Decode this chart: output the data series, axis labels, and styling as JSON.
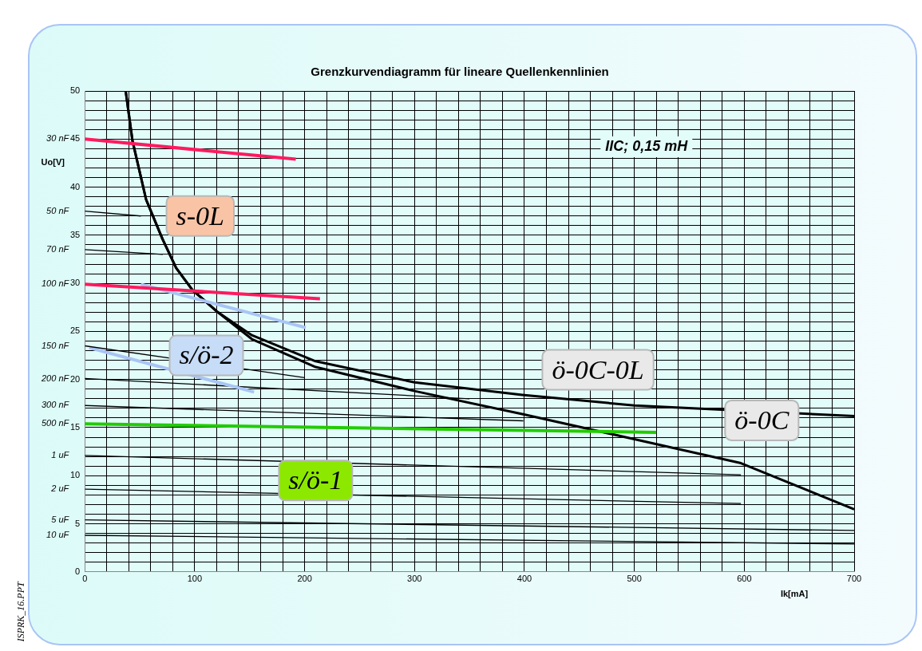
{
  "chart_data": {
    "type": "line",
    "title": "Grenzkurvendiagramm für lineare Quellenkennlinien",
    "xlabel": "Ik[mA]",
    "ylabel": "Uo[V]",
    "annotations": [
      "IIC; 0,15 mH",
      "ISPRK_16.PPT",
      "s-0L",
      "s/ö-2",
      "s/ö-1",
      "ö-0C-0L",
      "ö-0C"
    ],
    "xlim": [
      0,
      700
    ],
    "ylim": [
      0,
      50
    ],
    "xticks": [
      0,
      {
        "value": 20,
        "label": null
      },
      {
        "value": 40,
        "label": null
      },
      {
        "value": 60,
        "label": null
      },
      {
        "value": 80,
        "label": null
      },
      100,
      {
        "value": 120,
        "label": null
      },
      {
        "value": 140,
        "label": null
      },
      {
        "value": 160,
        "label": null
      },
      {
        "value": 180,
        "label": null
      },
      200,
      {
        "value": 220,
        "label": null
      },
      {
        "value": 240,
        "label": null
      },
      {
        "value": 260,
        "label": null
      },
      {
        "value": 280,
        "label": null
      },
      300,
      {
        "value": 320,
        "label": null
      },
      {
        "value": 340,
        "label": null
      },
      {
        "value": 360,
        "label": null
      },
      {
        "value": 380,
        "label": null
      },
      400,
      {
        "value": 420,
        "label": null
      },
      {
        "value": 440,
        "label": null
      },
      {
        "value": 460,
        "label": null
      },
      {
        "value": 480,
        "label": null
      },
      500,
      {
        "value": 520,
        "label": null
      },
      {
        "value": 540,
        "label": null
      },
      {
        "value": 560,
        "label": null
      },
      {
        "value": 580,
        "label": null
      },
      600,
      {
        "value": 620,
        "label": null
      },
      {
        "value": 640,
        "label": null
      },
      {
        "value": 660,
        "label": null
      },
      {
        "value": 680,
        "label": null
      },
      700
    ],
    "yticks": [
      0,
      {
        "value": 1,
        "label": null
      },
      {
        "value": 2,
        "label": null
      },
      {
        "value": 3,
        "label": null
      },
      {
        "value": 4,
        "label": null
      },
      5,
      {
        "value": 6,
        "label": null
      },
      {
        "value": 7,
        "label": null
      },
      {
        "value": 8,
        "label": null
      },
      {
        "value": 9,
        "label": null
      },
      10,
      {
        "value": 11,
        "label": null
      },
      {
        "value": 12,
        "label": null
      },
      {
        "value": 13,
        "label": null
      },
      {
        "value": 14,
        "label": null
      },
      15,
      {
        "value": 16,
        "label": null
      },
      {
        "value": 17,
        "label": null
      },
      {
        "value": 18,
        "label": null
      },
      {
        "value": 19,
        "label": null
      },
      20,
      {
        "value": 21,
        "label": null
      },
      {
        "value": 22,
        "label": null
      },
      {
        "value": 23,
        "label": null
      },
      {
        "value": 24,
        "label": null
      },
      25,
      {
        "value": 26,
        "label": null
      },
      {
        "value": 27,
        "label": null
      },
      {
        "value": 28,
        "label": null
      },
      {
        "value": 29,
        "label": null
      },
      30,
      {
        "value": 31,
        "label": null
      },
      {
        "value": 32,
        "label": null
      },
      {
        "value": 33,
        "label": null
      },
      {
        "value": 34,
        "label": null
      },
      35,
      {
        "value": 36,
        "label": null
      },
      {
        "value": 37,
        "label": null
      },
      {
        "value": 38,
        "label": null
      },
      {
        "value": 39,
        "label": null
      },
      40,
      {
        "value": 41,
        "label": null
      },
      {
        "value": 42,
        "label": null
      },
      {
        "value": 43,
        "label": null
      },
      {
        "value": 44,
        "label": null
      },
      45,
      {
        "value": 46,
        "label": null
      },
      {
        "value": 47,
        "label": null
      },
      {
        "value": 48,
        "label": null
      },
      {
        "value": 49,
        "label": null
      },
      50
    ],
    "grid": true,
    "legend": false,
    "marker": "none",
    "line_style": "solid",
    "series": [
      {
        "name": "30 nF",
        "color": "#ff1a5e",
        "x": [
          0,
          192
        ],
        "values": [
          45,
          42.9
        ]
      },
      {
        "name": "50 nF",
        "color": "#000000",
        "x": [
          0,
          51
        ],
        "values": [
          37.5,
          37.0
        ]
      },
      {
        "name": "70 nF",
        "color": "#000000",
        "x": [
          0,
          71
        ],
        "values": [
          33.5,
          33.0
        ]
      },
      {
        "name": "100 nF",
        "color": "#ff1a5e",
        "x": [
          0,
          214
        ],
        "values": [
          29.9,
          28.4
        ]
      },
      {
        "color": "#a9c4f5",
        "x": [
          51,
          201
        ],
        "values": [
          29.9,
          25.4
        ]
      },
      {
        "name": "150 nF",
        "color": "#000000",
        "x": [
          0,
          200
        ],
        "values": [
          23.5,
          20.2
        ]
      },
      {
        "color": "#a9c4f5",
        "x": [
          4,
          154
        ],
        "values": [
          23.3,
          18.7
        ]
      },
      {
        "name": "200 nF",
        "color": "#000000",
        "x": [
          0,
          350
        ],
        "values": [
          20.1,
          18.0
        ]
      },
      {
        "name": "300 nF",
        "color": "#000000",
        "x": [
          0,
          399
        ],
        "values": [
          17.3,
          15.7
        ]
      },
      {
        "name": "500 nF",
        "color": "#22cc00",
        "x": [
          0,
          520
        ],
        "values": [
          15.4,
          14.5
        ]
      },
      {
        "name": "1 uF",
        "color": "#000000",
        "x": [
          0,
          597
        ],
        "values": [
          12.1,
          10.1
        ]
      },
      {
        "name": "2 uF",
        "color": "#000000",
        "x": [
          0,
          597
        ],
        "values": [
          8.6,
          7.1
        ]
      },
      {
        "name": "5 uF",
        "color": "#000000",
        "x": [
          0,
          700
        ],
        "values": [
          5.4,
          4.3
        ]
      },
      {
        "name": "10 uF",
        "color": "#000000",
        "x": [
          0,
          700
        ],
        "values": [
          3.8,
          2.9
        ]
      },
      {
        "color": "#000000",
        "x": [
          37.2,
          43.4,
          55.8,
          70.7,
          83.1,
          98,
          121,
          152,
          210,
          300,
          398,
          500,
          700
        ],
        "values": [
          50,
          44.8,
          38.7,
          34.6,
          31.6,
          29.3,
          27.0,
          24.6,
          21.9,
          19.7,
          18.4,
          17.3,
          16.2
        ]
      },
      {
        "color": "#000000",
        "x": [
          37.2,
          43.4,
          55.8,
          70.7,
          83.1,
          98,
          121,
          152,
          210,
          300,
          398,
          500,
          597,
          700
        ],
        "values": [
          50,
          44.8,
          38.7,
          34.6,
          31.6,
          29.3,
          27.0,
          24.2,
          21.3,
          18.8,
          16.4,
          13.8,
          11.3,
          6.5
        ]
      }
    ]
  }
}
